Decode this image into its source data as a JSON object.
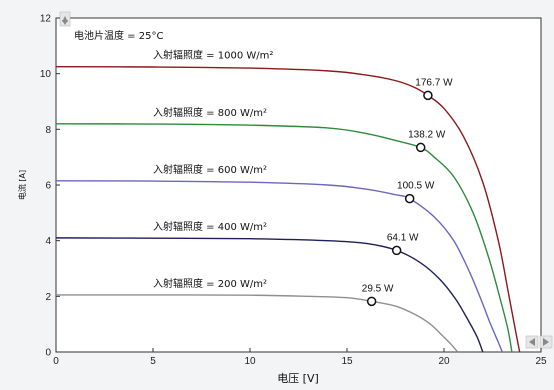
{
  "chart_data": {
    "type": "line",
    "title": "电池片温度 = 25°C",
    "xlabel": "电压 [V]",
    "ylabel": "电流 [A]",
    "xlim": [
      0,
      25
    ],
    "ylim": [
      0,
      12
    ],
    "xticks": [
      "0",
      "5",
      "10",
      "15",
      "20",
      "25"
    ],
    "yticks": [
      "0",
      "2",
      "4",
      "6",
      "8",
      "10",
      "12"
    ],
    "grid": false,
    "series": [
      {
        "name": "入射辐照度 = 1000 W/m²",
        "color": "#8b1a1a",
        "points": [
          [
            0,
            10.25
          ],
          [
            5,
            10.24
          ],
          [
            10,
            10.2
          ],
          [
            14,
            10.1
          ],
          [
            16,
            9.95
          ],
          [
            17.5,
            9.75
          ],
          [
            18.5,
            9.5
          ],
          [
            19.17,
            9.22
          ],
          [
            20,
            8.75
          ],
          [
            21,
            7.75
          ],
          [
            22,
            6.1
          ],
          [
            22.8,
            4.0
          ],
          [
            23.3,
            2.2
          ],
          [
            23.65,
            0.9
          ],
          [
            23.9,
            0.0
          ]
        ],
        "mpp_label": "176.7 W",
        "mpp": [
          19.17,
          9.22
        ]
      },
      {
        "name": "入射辐照度 = 800 W/m²",
        "color": "#2e8b3e",
        "points": [
          [
            0,
            8.2
          ],
          [
            5,
            8.19
          ],
          [
            10,
            8.15
          ],
          [
            14,
            8.05
          ],
          [
            16,
            7.85
          ],
          [
            17.5,
            7.6
          ],
          [
            18.8,
            7.35
          ],
          [
            19.5,
            7.0
          ],
          [
            20.5,
            6.3
          ],
          [
            21.5,
            5.0
          ],
          [
            22.3,
            3.4
          ],
          [
            22.9,
            1.9
          ],
          [
            23.3,
            0.8
          ],
          [
            23.5,
            0.0
          ]
        ],
        "mpp_label": "138.2 W",
        "mpp": [
          18.8,
          7.35
        ]
      },
      {
        "name": "入射辐照度 = 600 W/m²",
        "color": "#6a66c4",
        "points": [
          [
            0,
            6.15
          ],
          [
            5,
            6.14
          ],
          [
            10,
            6.1
          ],
          [
            14,
            6.0
          ],
          [
            16,
            5.85
          ],
          [
            17.5,
            5.65
          ],
          [
            18.23,
            5.51
          ],
          [
            19.5,
            4.85
          ],
          [
            20.5,
            4.0
          ],
          [
            21.3,
            2.9
          ],
          [
            21.9,
            1.9
          ],
          [
            22.4,
            1.0
          ],
          [
            22.8,
            0.35
          ],
          [
            23.0,
            0.0
          ]
        ],
        "mpp_label": "100.5 W",
        "mpp": [
          18.23,
          5.51
        ]
      },
      {
        "name": "入射辐照度 = 400 W/m²",
        "color": "#1f1f5c",
        "points": [
          [
            0,
            4.1
          ],
          [
            5,
            4.09
          ],
          [
            10,
            4.07
          ],
          [
            14,
            4.0
          ],
          [
            16,
            3.9
          ],
          [
            17.56,
            3.65
          ],
          [
            18.8,
            3.2
          ],
          [
            19.8,
            2.6
          ],
          [
            20.6,
            1.9
          ],
          [
            21.2,
            1.2
          ],
          [
            21.7,
            0.55
          ],
          [
            22.0,
            0.0
          ]
        ],
        "mpp_label": "64.1 W",
        "mpp": [
          17.56,
          3.65
        ]
      },
      {
        "name": "入射辐照度 = 200 W/m²",
        "color": "#8f8f8f",
        "points": [
          [
            0,
            2.05
          ],
          [
            5,
            2.05
          ],
          [
            10,
            2.04
          ],
          [
            13,
            2.0
          ],
          [
            15,
            1.95
          ],
          [
            16.27,
            1.82
          ],
          [
            17.5,
            1.65
          ],
          [
            18.5,
            1.35
          ],
          [
            19.3,
            1.0
          ],
          [
            19.9,
            0.6
          ],
          [
            20.4,
            0.25
          ],
          [
            20.7,
            0.0
          ]
        ],
        "mpp_label": "29.5 W",
        "mpp": [
          16.27,
          1.82
        ]
      }
    ]
  }
}
